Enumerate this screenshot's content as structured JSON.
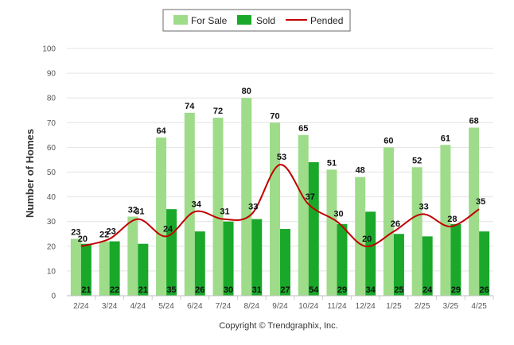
{
  "footer": "Copyright © Trendgraphix, Inc.",
  "chart_data": {
    "type": "bar",
    "ylabel": "Number of Homes",
    "ylim": [
      0,
      100
    ],
    "yticks": [
      0,
      10,
      20,
      30,
      40,
      50,
      60,
      70,
      80,
      90,
      100
    ],
    "grid": true,
    "legend_position": "top-center",
    "categories": [
      "2/24",
      "3/24",
      "4/24",
      "5/24",
      "6/24",
      "7/24",
      "8/24",
      "9/24",
      "10/24",
      "11/24",
      "12/24",
      "1/25",
      "2/25",
      "3/25",
      "4/25"
    ],
    "series": [
      {
        "name": "For Sale",
        "kind": "bar",
        "color": "#9edc8a",
        "values": [
          23,
          22,
          32,
          64,
          74,
          72,
          80,
          70,
          65,
          51,
          48,
          60,
          52,
          61,
          68
        ]
      },
      {
        "name": "Sold",
        "kind": "bar",
        "color": "#1aa82b",
        "values": [
          21,
          22,
          21,
          35,
          26,
          30,
          31,
          27,
          54,
          29,
          34,
          25,
          24,
          29,
          26
        ]
      },
      {
        "name": "Pended",
        "kind": "line",
        "color": "#c00000",
        "values": [
          20,
          23,
          31,
          24,
          34,
          31,
          33,
          53,
          37,
          30,
          20,
          26,
          33,
          28,
          35
        ]
      }
    ]
  }
}
